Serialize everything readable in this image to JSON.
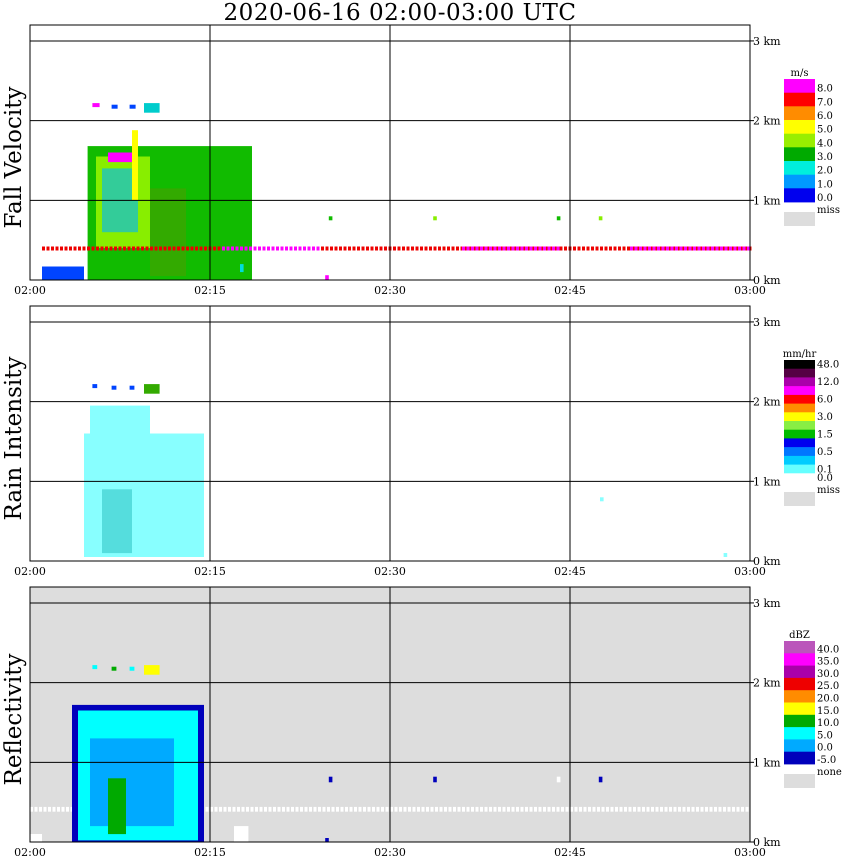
{
  "title": "2020-06-16   02:00-03:00 UTC",
  "chart_data": [
    {
      "type": "heatmap",
      "name": "fall-velocity",
      "ylabel": "Fall Velocity",
      "x_ticks": [
        "02:00",
        "02:15",
        "02:30",
        "02:45",
        "03:00"
      ],
      "y_ticks": [
        "0 km",
        "1 km",
        "2 km",
        "3 km"
      ],
      "xlim": [
        "02:00",
        "03:00"
      ],
      "ylim_km": [
        0,
        3.2
      ],
      "grid": true,
      "background": "#ffffff",
      "colorbar": {
        "unit": "m/s",
        "entries": [
          {
            "label": "8.0",
            "color": "#ff00ff"
          },
          {
            "label": "7.0",
            "color": "#ff0000"
          },
          {
            "label": "6.0",
            "color": "#ff8c00"
          },
          {
            "label": "5.0",
            "color": "#ffff00"
          },
          {
            "label": "4.0",
            "color": "#99ee00"
          },
          {
            "label": "3.0",
            "color": "#00aa00"
          },
          {
            "label": "2.0",
            "color": "#00eedd"
          },
          {
            "label": "1.0",
            "color": "#0099ff"
          },
          {
            "label": "0.0",
            "color": "#0000ee"
          },
          {
            "label": "miss",
            "color": "#dddddd"
          }
        ]
      },
      "echoes": [
        {
          "t0": 1.0,
          "t1": 4.5,
          "h0": 0.0,
          "h1": 0.17,
          "color": "#0044ff"
        },
        {
          "t0": 4.8,
          "t1": 18.5,
          "h0": 0.0,
          "h1": 1.68,
          "color": "#11bb00"
        },
        {
          "t0": 5.5,
          "t1": 10.0,
          "h0": 0.4,
          "h1": 1.55,
          "color": "#88ee00"
        },
        {
          "t0": 6.0,
          "t1": 9.0,
          "h0": 0.6,
          "h1": 1.4,
          "color": "#33cc99"
        },
        {
          "t0": 8.5,
          "t1": 9.0,
          "h0": 1.0,
          "h1": 1.88,
          "color": "#ffff00"
        },
        {
          "t0": 10.0,
          "t1": 13.0,
          "h0": 0.05,
          "h1": 1.15,
          "color": "#33aa00"
        },
        {
          "t0": 6.5,
          "t1": 8.5,
          "h0": 1.48,
          "h1": 1.6,
          "color": "#ff00ff"
        },
        {
          "t0": 5.2,
          "t1": 5.8,
          "h0": 2.17,
          "h1": 2.22,
          "color": "#ff00ff"
        },
        {
          "t0": 6.8,
          "t1": 7.3,
          "h0": 2.15,
          "h1": 2.2,
          "color": "#0044ff"
        },
        {
          "t0": 8.3,
          "t1": 8.8,
          "h0": 2.15,
          "h1": 2.2,
          "color": "#0044ff"
        },
        {
          "t0": 9.5,
          "t1": 10.8,
          "h0": 2.1,
          "h1": 2.22,
          "color": "#00cccc"
        },
        {
          "t0": 1.0,
          "t1": 60.0,
          "h0": 0.37,
          "h1": 0.42,
          "color": "#ee0000",
          "dashed": true
        },
        {
          "t0": 16.0,
          "t1": 24.0,
          "h0": 0.37,
          "h1": 0.42,
          "color": "#ff00ff",
          "dashed": true
        },
        {
          "t0": 36.0,
          "t1": 44.0,
          "h0": 0.37,
          "h1": 0.42,
          "color": "#ff00ff",
          "dashed": true
        },
        {
          "t0": 50.0,
          "t1": 60.0,
          "h0": 0.37,
          "h1": 0.42,
          "color": "#ff00ff",
          "dashed": true
        },
        {
          "t0": 17.5,
          "t1": 17.8,
          "h0": 0.1,
          "h1": 0.2,
          "color": "#00dddd"
        },
        {
          "t0": 24.6,
          "t1": 24.9,
          "h0": 0.0,
          "h1": 0.06,
          "color": "#ff00ff"
        },
        {
          "t0": 24.9,
          "t1": 25.2,
          "h0": 0.75,
          "h1": 0.8,
          "color": "#11bb00"
        },
        {
          "t0": 33.6,
          "t1": 33.9,
          "h0": 0.75,
          "h1": 0.8,
          "color": "#88ee00"
        },
        {
          "t0": 43.9,
          "t1": 44.2,
          "h0": 0.75,
          "h1": 0.8,
          "color": "#11bb00"
        },
        {
          "t0": 47.4,
          "t1": 47.7,
          "h0": 0.75,
          "h1": 0.8,
          "color": "#88ee00"
        }
      ]
    },
    {
      "type": "heatmap",
      "name": "rain-intensity",
      "ylabel": "Rain Intensity",
      "x_ticks": [
        "02:00",
        "02:15",
        "02:30",
        "02:45",
        "03:00"
      ],
      "y_ticks": [
        "0 km",
        "1 km",
        "2 km",
        "3 km"
      ],
      "xlim": [
        "02:00",
        "03:00"
      ],
      "ylim_km": [
        0,
        3.2
      ],
      "grid": true,
      "background": "#ffffff",
      "colorbar": {
        "unit": "mm/hr",
        "entries": [
          {
            "label": "48.0",
            "color": "#000000"
          },
          {
            "label": "",
            "color": "#550044"
          },
          {
            "label": "12.0",
            "color": "#aa00aa"
          },
          {
            "label": "",
            "color": "#ff00ff"
          },
          {
            "label": "6.0",
            "color": "#ff0000"
          },
          {
            "label": "",
            "color": "#ff8c00"
          },
          {
            "label": "3.0",
            "color": "#ffff00"
          },
          {
            "label": "",
            "color": "#88ee44"
          },
          {
            "label": "1.5",
            "color": "#00bb00"
          },
          {
            "label": "",
            "color": "#0000ee"
          },
          {
            "label": "0.5",
            "color": "#0077ff"
          },
          {
            "label": "",
            "color": "#00ccff"
          },
          {
            "label": "0.1",
            "color": "#66ffff"
          },
          {
            "label": "0.0",
            "color": "#ffffff"
          },
          {
            "label": "miss",
            "color": "#dddddd"
          }
        ]
      },
      "echoes": [
        {
          "t0": 4.5,
          "t1": 14.5,
          "h0": 0.05,
          "h1": 1.6,
          "color": "#88ffff"
        },
        {
          "t0": 5.0,
          "t1": 10.0,
          "h0": 1.5,
          "h1": 1.95,
          "color": "#88ffff"
        },
        {
          "t0": 6.0,
          "t1": 8.5,
          "h0": 0.1,
          "h1": 0.9,
          "color": "#55dddd"
        },
        {
          "t0": 5.2,
          "t1": 5.6,
          "h0": 2.17,
          "h1": 2.22,
          "color": "#0044ff"
        },
        {
          "t0": 6.8,
          "t1": 7.2,
          "h0": 2.15,
          "h1": 2.2,
          "color": "#0044ff"
        },
        {
          "t0": 8.3,
          "t1": 8.7,
          "h0": 2.15,
          "h1": 2.2,
          "color": "#0044ff"
        },
        {
          "t0": 9.5,
          "t1": 10.8,
          "h0": 2.1,
          "h1": 2.22,
          "color": "#33aa00"
        },
        {
          "t0": 47.5,
          "t1": 47.8,
          "h0": 0.75,
          "h1": 0.8,
          "color": "#88ffff"
        },
        {
          "t0": 57.8,
          "t1": 58.1,
          "h0": 0.05,
          "h1": 0.1,
          "color": "#88ffff"
        }
      ]
    },
    {
      "type": "heatmap",
      "name": "reflectivity",
      "ylabel": "Reflectivity",
      "x_ticks": [
        "02:00",
        "02:15",
        "02:30",
        "02:45",
        "03:00"
      ],
      "y_ticks": [
        "0 km",
        "1 km",
        "2 km",
        "3 km"
      ],
      "xlim": [
        "02:00",
        "03:00"
      ],
      "ylim_km": [
        0,
        3.2
      ],
      "grid": true,
      "background": "#dddddd",
      "colorbar": {
        "unit": "dBZ",
        "entries": [
          {
            "label": "40.0",
            "color": "#bb55bb"
          },
          {
            "label": "35.0",
            "color": "#ff00ff"
          },
          {
            "label": "30.0",
            "color": "#aa00aa"
          },
          {
            "label": "25.0",
            "color": "#ee0000"
          },
          {
            "label": "20.0",
            "color": "#ff8c00"
          },
          {
            "label": "15.0",
            "color": "#ffff00"
          },
          {
            "label": "10.0",
            "color": "#00aa00"
          },
          {
            "label": "5.0",
            "color": "#00ffff"
          },
          {
            "label": "0.0",
            "color": "#00aaff"
          },
          {
            "label": "-5.0",
            "color": "#0000bb"
          },
          {
            "label": "none",
            "color": "#dddddd"
          }
        ]
      },
      "echoes": [
        {
          "t0": 0.0,
          "t1": 60.0,
          "h0": 0.38,
          "h1": 0.44,
          "color": "#ffffff",
          "dashed": true
        },
        {
          "t0": 0.0,
          "t1": 1.0,
          "h0": 0.0,
          "h1": 0.1,
          "color": "#ffffff"
        },
        {
          "t0": 3.5,
          "t1": 14.5,
          "h0": 0.0,
          "h1": 1.72,
          "color": "#0000bb"
        },
        {
          "t0": 4.0,
          "t1": 14.0,
          "h0": 0.02,
          "h1": 1.65,
          "color": "#00ffff"
        },
        {
          "t0": 5.0,
          "t1": 12.0,
          "h0": 0.2,
          "h1": 1.3,
          "color": "#00aaff"
        },
        {
          "t0": 6.5,
          "t1": 8.0,
          "h0": 0.1,
          "h1": 0.8,
          "color": "#00aa00"
        },
        {
          "t0": 5.2,
          "t1": 5.6,
          "h0": 2.17,
          "h1": 2.22,
          "color": "#00ffff"
        },
        {
          "t0": 6.8,
          "t1": 7.2,
          "h0": 2.15,
          "h1": 2.2,
          "color": "#00aa00"
        },
        {
          "t0": 8.3,
          "t1": 8.7,
          "h0": 2.15,
          "h1": 2.2,
          "color": "#00ffff"
        },
        {
          "t0": 9.5,
          "t1": 10.8,
          "h0": 2.1,
          "h1": 2.22,
          "color": "#ffff00"
        },
        {
          "t0": 17.0,
          "t1": 18.2,
          "h0": 0.0,
          "h1": 0.2,
          "color": "#ffffff"
        },
        {
          "t0": 24.6,
          "t1": 24.9,
          "h0": 0.0,
          "h1": 0.05,
          "color": "#0000bb"
        },
        {
          "t0": 24.9,
          "t1": 25.2,
          "h0": 0.75,
          "h1": 0.82,
          "color": "#0000bb"
        },
        {
          "t0": 33.6,
          "t1": 33.9,
          "h0": 0.75,
          "h1": 0.82,
          "color": "#0000bb"
        },
        {
          "t0": 43.9,
          "t1": 44.2,
          "h0": 0.75,
          "h1": 0.82,
          "color": "#ffffff"
        },
        {
          "t0": 47.4,
          "t1": 47.7,
          "h0": 0.75,
          "h1": 0.82,
          "color": "#0000bb"
        }
      ]
    }
  ]
}
